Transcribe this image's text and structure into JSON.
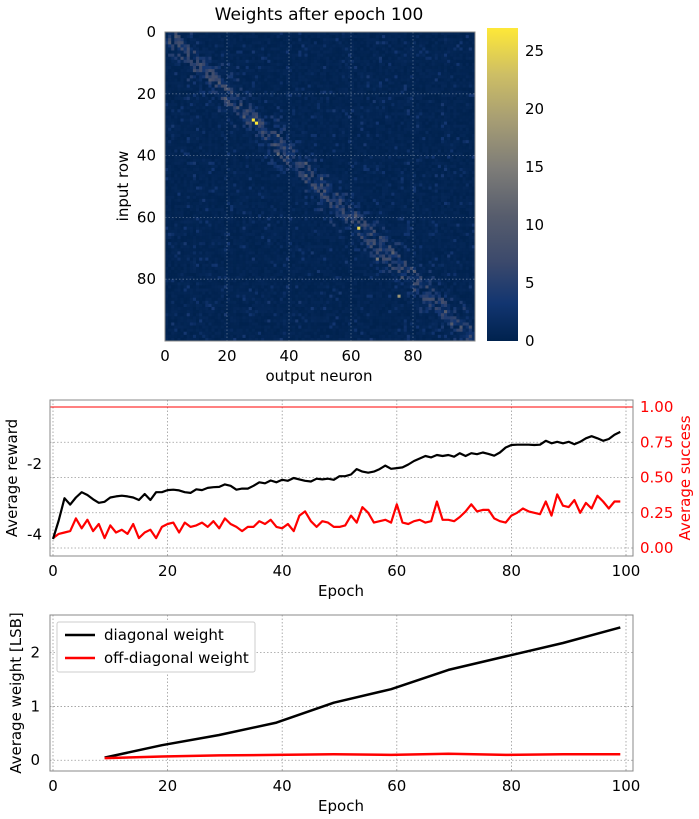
{
  "chart_data": [
    {
      "type": "heatmap",
      "title": "Weights after epoch 100",
      "xlabel": "output neuron",
      "ylabel": "input row",
      "rows": 100,
      "cols": 100,
      "xticks": [
        "0",
        "20",
        "40",
        "60",
        "80"
      ],
      "yticks": [
        "0",
        "20",
        "40",
        "60",
        "80"
      ],
      "colormap": "cividis",
      "colorbar": {
        "range": [
          0,
          27
        ],
        "ticks": [
          "0",
          "5",
          "10",
          "15",
          "20",
          "25"
        ]
      },
      "pattern": "weights concentrated near the diagonal (input row ≈ output neuron), values mostly 0–8 with peaks up to ~27 near row 28–30 and ~25 near row 63"
    },
    {
      "type": "line",
      "xlabel": "Epoch",
      "ylabel": "Average reward",
      "ylabel_right": "Average success",
      "xlim": [
        0,
        100
      ],
      "ylim_left": [
        -4.6,
        -0.2
      ],
      "ylim_right": [
        0,
        1.05
      ],
      "xticks": [
        "0",
        "20",
        "40",
        "60",
        "80",
        "100"
      ],
      "yticks_left": [
        "-4",
        "-2"
      ],
      "yticks_right": [
        "0.00",
        "0.25",
        "0.50",
        "0.75",
        "1.00"
      ],
      "reference_line_right": 1.0,
      "colors": {
        "reward": "#000000",
        "success": "#ff0000"
      },
      "series": [
        {
          "axis": "left",
          "color": "#000000",
          "x": [
            0,
            1,
            2,
            3,
            4,
            5,
            6,
            7,
            8,
            9,
            10,
            11,
            12,
            13,
            14,
            15,
            16,
            17,
            18,
            19,
            20,
            21,
            22,
            23,
            24,
            25,
            26,
            27,
            28,
            29,
            30,
            31,
            32,
            33,
            34,
            35,
            36,
            37,
            38,
            39,
            40,
            41,
            42,
            43,
            44,
            45,
            46,
            47,
            48,
            49,
            50,
            51,
            52,
            53,
            54,
            55,
            56,
            57,
            58,
            59,
            60,
            61,
            62,
            63,
            64,
            65,
            66,
            67,
            68,
            69,
            70,
            71,
            72,
            73,
            74,
            75,
            76,
            77,
            78,
            79,
            80,
            81,
            82,
            83,
            84,
            85,
            86,
            87,
            88,
            89,
            90,
            91,
            92,
            93,
            94,
            95,
            96,
            97,
            98,
            99
          ],
          "values": [
            -4.12,
            -3.6,
            -2.97,
            -3.15,
            -2.95,
            -2.8,
            -2.88,
            -3.0,
            -3.1,
            -3.07,
            -2.95,
            -2.92,
            -2.9,
            -2.92,
            -2.95,
            -3.02,
            -2.85,
            -3.02,
            -2.8,
            -2.8,
            -2.74,
            -2.73,
            -2.75,
            -2.8,
            -2.82,
            -2.72,
            -2.74,
            -2.68,
            -2.66,
            -2.65,
            -2.58,
            -2.62,
            -2.73,
            -2.7,
            -2.7,
            -2.62,
            -2.52,
            -2.55,
            -2.47,
            -2.52,
            -2.45,
            -2.48,
            -2.4,
            -2.44,
            -2.48,
            -2.5,
            -2.42,
            -2.44,
            -2.42,
            -2.45,
            -2.35,
            -2.35,
            -2.3,
            -2.15,
            -2.22,
            -2.25,
            -2.22,
            -2.15,
            -2.05,
            -2.14,
            -2.12,
            -2.1,
            -2.02,
            -1.92,
            -1.85,
            -1.78,
            -1.82,
            -1.75,
            -1.78,
            -1.75,
            -1.8,
            -1.7,
            -1.78,
            -1.7,
            -1.73,
            -1.68,
            -1.72,
            -1.77,
            -1.68,
            -1.54,
            -1.47,
            -1.46,
            -1.46,
            -1.46,
            -1.47,
            -1.46,
            -1.35,
            -1.42,
            -1.38,
            -1.42,
            -1.38,
            -1.45,
            -1.38,
            -1.28,
            -1.22,
            -1.28,
            -1.35,
            -1.3,
            -1.18,
            -1.1
          ]
        },
        {
          "axis": "right",
          "color": "#ff0000",
          "x": [
            0,
            1,
            2,
            3,
            4,
            5,
            6,
            7,
            8,
            9,
            10,
            11,
            12,
            13,
            14,
            15,
            16,
            17,
            18,
            19,
            20,
            21,
            22,
            23,
            24,
            25,
            26,
            27,
            28,
            29,
            30,
            31,
            32,
            33,
            34,
            35,
            36,
            37,
            38,
            39,
            40,
            41,
            42,
            43,
            44,
            45,
            46,
            47,
            48,
            49,
            50,
            51,
            52,
            53,
            54,
            55,
            56,
            57,
            58,
            59,
            60,
            61,
            62,
            63,
            64,
            65,
            66,
            67,
            68,
            69,
            70,
            71,
            72,
            73,
            74,
            75,
            76,
            77,
            78,
            79,
            80,
            81,
            82,
            83,
            84,
            85,
            86,
            87,
            88,
            89,
            90,
            91,
            92,
            93,
            94,
            95,
            96,
            97,
            98,
            99
          ],
          "values": [
            0.07,
            0.1,
            0.11,
            0.12,
            0.21,
            0.14,
            0.2,
            0.12,
            0.17,
            0.07,
            0.16,
            0.11,
            0.13,
            0.1,
            0.17,
            0.07,
            0.11,
            0.13,
            0.07,
            0.15,
            0.17,
            0.18,
            0.11,
            0.18,
            0.15,
            0.16,
            0.18,
            0.15,
            0.19,
            0.14,
            0.21,
            0.17,
            0.15,
            0.12,
            0.15,
            0.15,
            0.19,
            0.17,
            0.2,
            0.15,
            0.14,
            0.17,
            0.12,
            0.23,
            0.26,
            0.19,
            0.15,
            0.19,
            0.18,
            0.15,
            0.15,
            0.16,
            0.23,
            0.18,
            0.29,
            0.25,
            0.18,
            0.19,
            0.2,
            0.18,
            0.31,
            0.18,
            0.17,
            0.19,
            0.2,
            0.18,
            0.19,
            0.33,
            0.2,
            0.2,
            0.19,
            0.22,
            0.26,
            0.31,
            0.26,
            0.27,
            0.27,
            0.21,
            0.19,
            0.18,
            0.23,
            0.25,
            0.28,
            0.26,
            0.25,
            0.24,
            0.33,
            0.23,
            0.38,
            0.3,
            0.29,
            0.34,
            0.25,
            0.32,
            0.28,
            0.37,
            0.33,
            0.28,
            0.33,
            0.33
          ]
        }
      ]
    },
    {
      "type": "line",
      "xlabel": "Epoch",
      "ylabel": "Average weight [LSB]",
      "xlim": [
        0,
        100
      ],
      "ylim": [
        -0.2,
        2.7
      ],
      "xticks": [
        "0",
        "20",
        "40",
        "60",
        "80",
        "100"
      ],
      "yticks": [
        "0",
        "1",
        "2"
      ],
      "legend_position": "top-left",
      "series": [
        {
          "name": "diagonal weight",
          "color": "#000000",
          "x": [
            9,
            19,
            29,
            39,
            49,
            59,
            69,
            79,
            89,
            99
          ],
          "values": [
            0.05,
            0.28,
            0.47,
            0.7,
            1.07,
            1.32,
            1.68,
            1.93,
            2.18,
            2.47
          ]
        },
        {
          "name": "off-diagonal weight",
          "color": "#ff0000",
          "x": [
            9,
            19,
            29,
            39,
            49,
            59,
            69,
            79,
            89,
            99
          ],
          "values": [
            0.04,
            0.07,
            0.09,
            0.1,
            0.11,
            0.1,
            0.12,
            0.1,
            0.11,
            0.11
          ]
        }
      ]
    }
  ]
}
